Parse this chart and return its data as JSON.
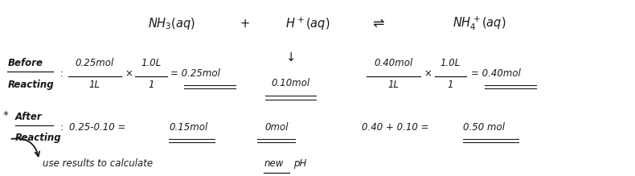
{
  "bg_color": "#ffffff",
  "text_color": "#1a1a1a",
  "figsize": [
    7.9,
    2.19
  ],
  "dpi": 100,
  "font_family": "DejaVu Sans",
  "fs_main": 10.5,
  "fs_label": 8.5,
  "fs_eq": 8.5,
  "row1_nh3": "$NH_3(aq)$",
  "row1_plus": "+",
  "row1_hplus": "$H^+(aq)$",
  "row1_arrow": "$\\rightleftharpoons$",
  "row1_nh4": "$NH_4^+(aq)$",
  "row2_before1": "Before",
  "row2_before2": "Reacting",
  "row2_nh3_num": "0.25mol",
  "row2_nh3_den": "1L",
  "row2_times": "×",
  "row2_nh3_num2": "1.0L",
  "row2_nh3_den2": "1",
  "row2_nh3_eq": "= 0.25mol",
  "row2_h_down": "↓",
  "row2_h_val": "0.10mol",
  "row2_nh4_num": "0.40mol",
  "row2_nh4_den": "1L",
  "row2_nh4_num2": "1.0L",
  "row2_nh4_den2": "1",
  "row2_nh4_eq": "= 0.40mol",
  "row3_after1": "After",
  "row3_after2": "Reacting",
  "row3_nh3_calc": "0.25-0.10 =",
  "row3_nh3_ans": "0.15mol",
  "row3_h_ans": "0mol",
  "row3_nh4_calc": "0.40 + 0.10 =",
  "row3_nh4_ans": "0.50 mol",
  "row4_text": "use results to calculate",
  "row4_new": "new",
  "row4_ph": "pH"
}
